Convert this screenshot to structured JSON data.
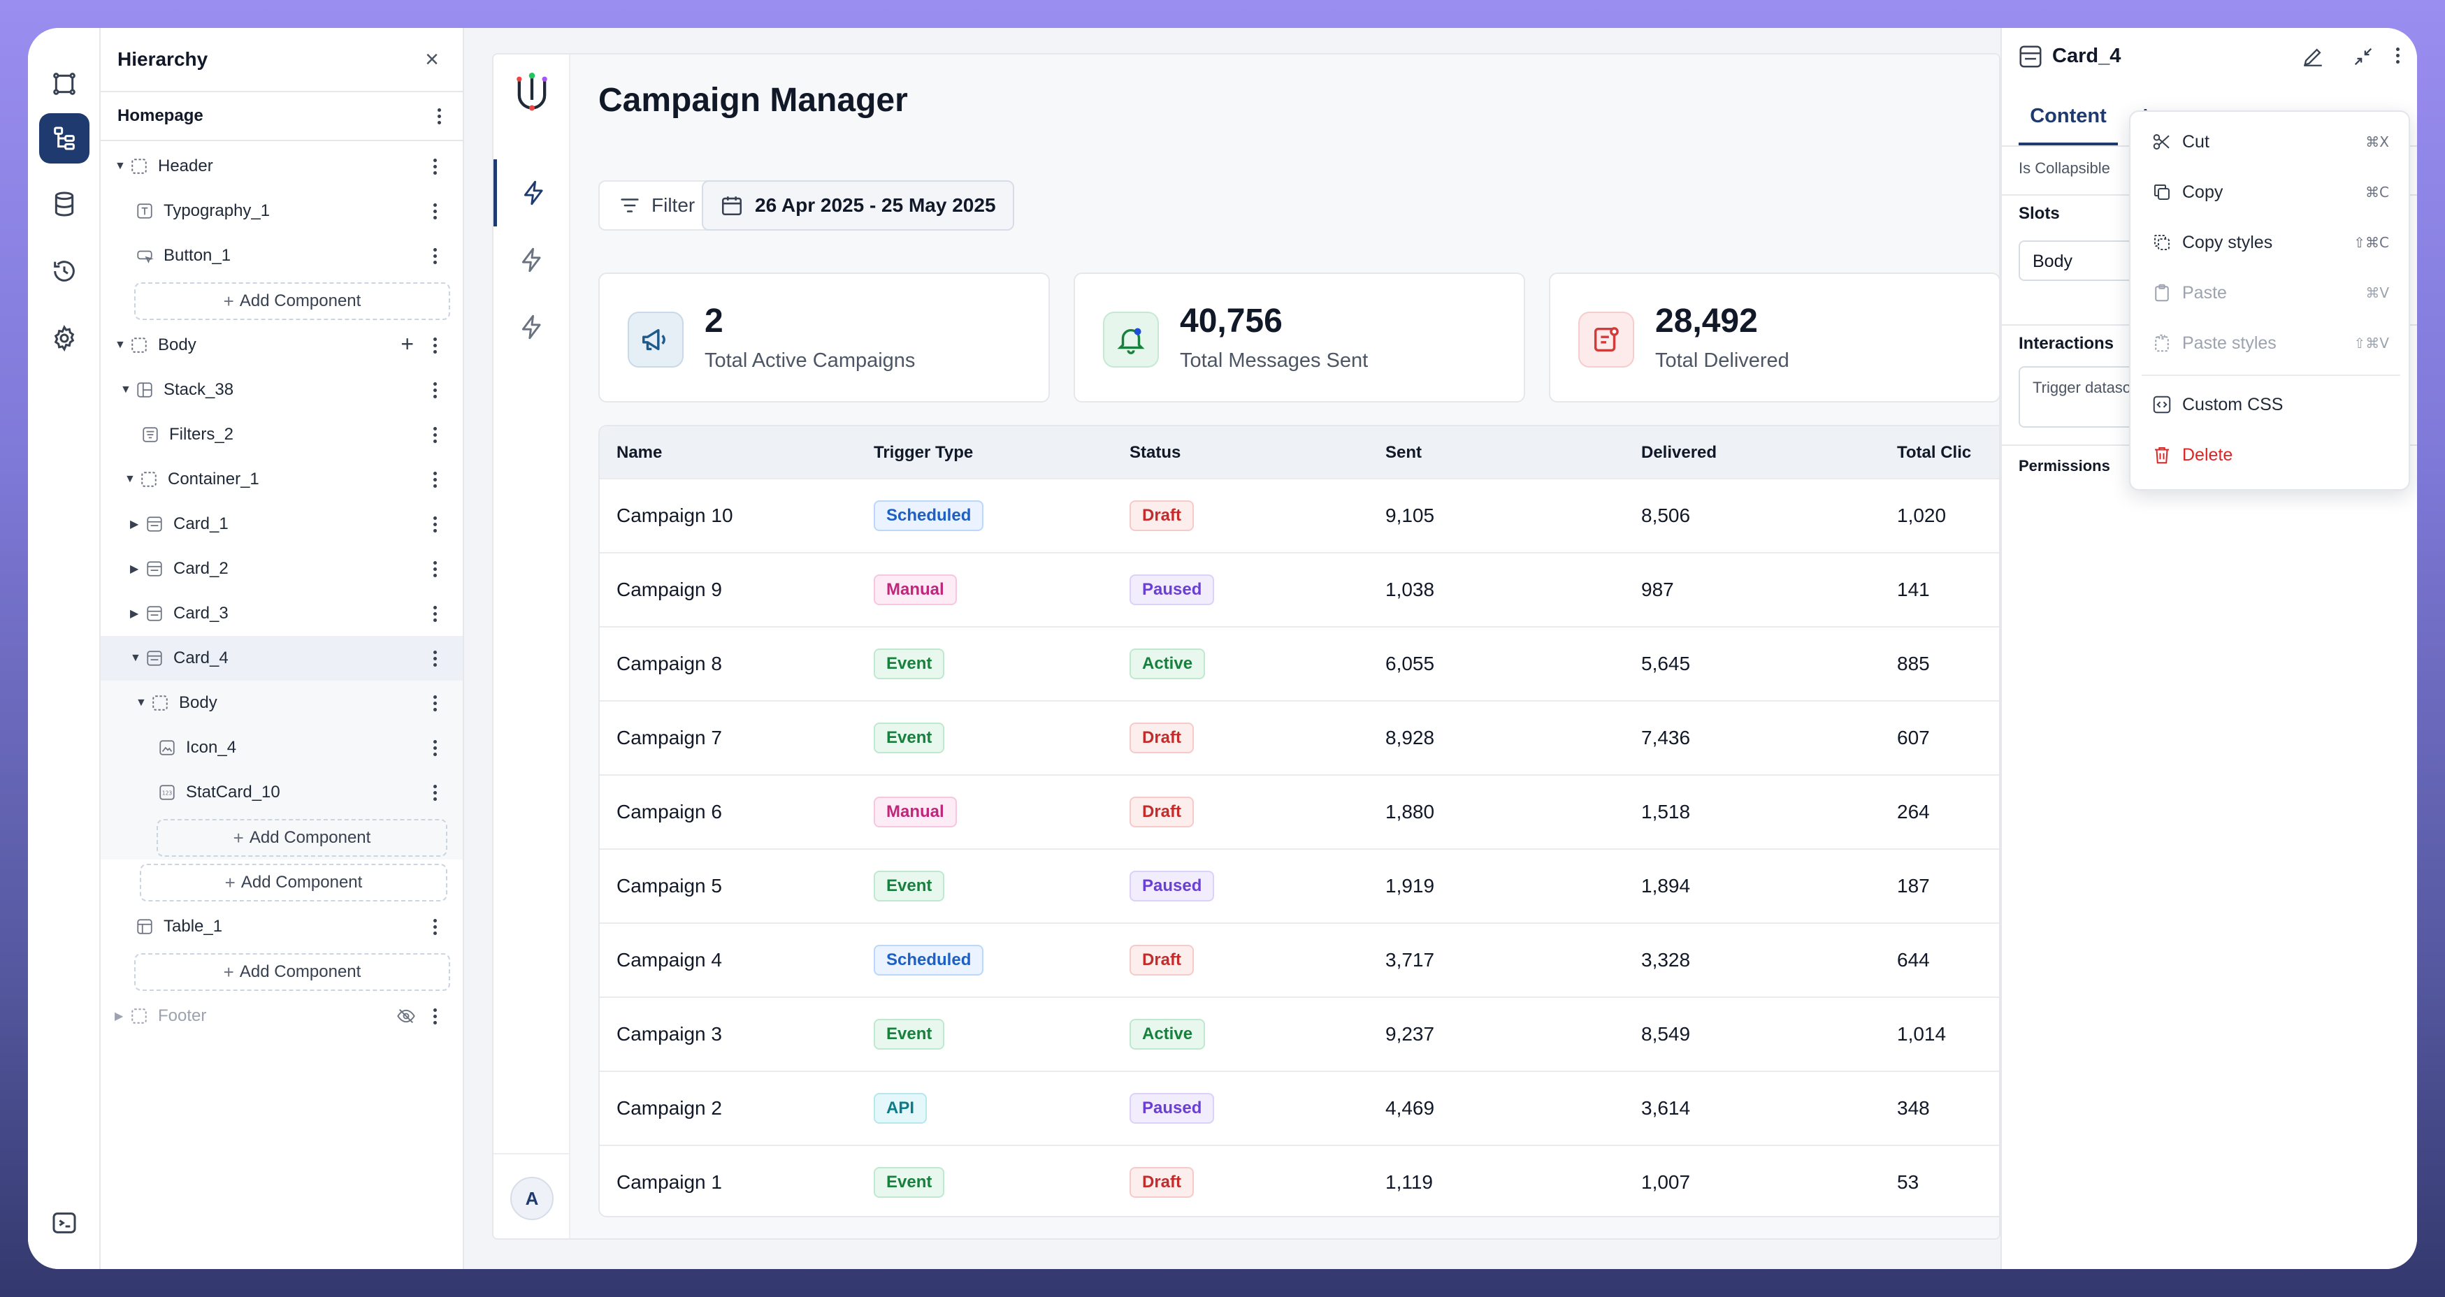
{
  "hierarchy": {
    "title": "Hierarchy",
    "page": "Homepage",
    "nodes": {
      "header": "Header",
      "typography_1": "Typography_1",
      "button_1": "Button_1",
      "body": "Body",
      "stack_38": "Stack_38",
      "filters_2": "Filters_2",
      "container_1": "Container_1",
      "card_1": "Card_1",
      "card_2": "Card_2",
      "card_3": "Card_3",
      "card_4": "Card_4",
      "card_4_body": "Body",
      "icon_4": "Icon_4",
      "statcard_10": "StatCard_10",
      "table_1": "Table_1",
      "footer": "Footer"
    },
    "add_component": "Add Component"
  },
  "app": {
    "title": "Campaign Manager",
    "filter_label": "Filter",
    "date_range": "26 Apr 2025 - 25 May 2025",
    "avatar_initial": "A",
    "stats": [
      {
        "value": "2",
        "label": "Total Active Campaigns",
        "icon": "megaphone-icon",
        "color": "#1e5a8a"
      },
      {
        "value": "40,756",
        "label": "Total Messages Sent",
        "icon": "bell-icon",
        "color": "#17803d"
      },
      {
        "value": "28,492",
        "label": "Total Delivered",
        "icon": "message-icon",
        "color": "#d33a3a"
      }
    ],
    "table": {
      "columns": [
        "Name",
        "Trigger Type",
        "Status",
        "Sent",
        "Delivered",
        "Total Clic"
      ],
      "rows": [
        {
          "name": "Campaign 10",
          "trigger": "Scheduled",
          "status": "Draft",
          "sent": "9,105",
          "delivered": "8,506",
          "clicks": "1,020"
        },
        {
          "name": "Campaign 9",
          "trigger": "Manual",
          "status": "Paused",
          "sent": "1,038",
          "delivered": "987",
          "clicks": "141"
        },
        {
          "name": "Campaign 8",
          "trigger": "Event",
          "status": "Active",
          "sent": "6,055",
          "delivered": "5,645",
          "clicks": "885"
        },
        {
          "name": "Campaign 7",
          "trigger": "Event",
          "status": "Draft",
          "sent": "8,928",
          "delivered": "7,436",
          "clicks": "607"
        },
        {
          "name": "Campaign 6",
          "trigger": "Manual",
          "status": "Draft",
          "sent": "1,880",
          "delivered": "1,518",
          "clicks": "264"
        },
        {
          "name": "Campaign 5",
          "trigger": "Event",
          "status": "Paused",
          "sent": "1,919",
          "delivered": "1,894",
          "clicks": "187"
        },
        {
          "name": "Campaign 4",
          "trigger": "Scheduled",
          "status": "Draft",
          "sent": "3,717",
          "delivered": "3,328",
          "clicks": "644"
        },
        {
          "name": "Campaign 3",
          "trigger": "Event",
          "status": "Active",
          "sent": "9,237",
          "delivered": "8,549",
          "clicks": "1,014"
        },
        {
          "name": "Campaign 2",
          "trigger": "API",
          "status": "Paused",
          "sent": "4,469",
          "delivered": "3,614",
          "clicks": "348"
        },
        {
          "name": "Campaign 1",
          "trigger": "Event",
          "status": "Draft",
          "sent": "1,119",
          "delivered": "1,007",
          "clicks": "53"
        }
      ]
    }
  },
  "inspector": {
    "title": "Card_4",
    "tab_content": "Content",
    "tab_other": "A",
    "is_collapsible": "Is Collapsible",
    "slots_label": "Slots",
    "slot_value": "Body",
    "interactions_label": "Interactions",
    "interactions_text": "Trigger datasources, set variables in response",
    "permissions_label": "Permissions"
  },
  "context_menu": {
    "items": [
      {
        "label": "Cut",
        "shortcut": "⌘X",
        "icon": "scissors-icon"
      },
      {
        "label": "Copy",
        "shortcut": "⌘C",
        "icon": "copy-icon"
      },
      {
        "label": "Copy styles",
        "shortcut": "⇧⌘C",
        "icon": "copy-styles-icon"
      },
      {
        "label": "Paste",
        "shortcut": "⌘V",
        "icon": "paste-icon"
      },
      {
        "label": "Paste styles",
        "shortcut": "⇧⌘V",
        "icon": "paste-styles-icon"
      },
      {
        "label": "Custom CSS",
        "shortcut": "",
        "icon": "code-icon"
      },
      {
        "label": "Delete",
        "shortcut": "",
        "icon": "trash-icon"
      }
    ]
  }
}
